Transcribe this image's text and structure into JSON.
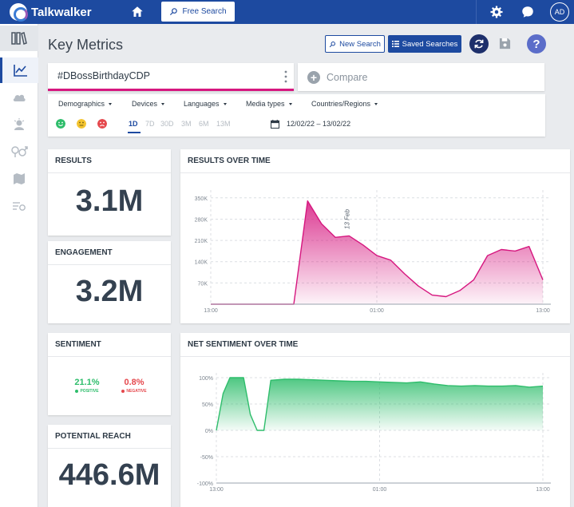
{
  "app": {
    "brand": "Talkwalker",
    "free_search_label": "Free Search",
    "avatar_initials": "AD",
    "brand_color": "#1d4aa0"
  },
  "header": {
    "title": "Key Metrics",
    "new_search_label": "New Search",
    "saved_searches_label": "Saved Searches",
    "help_label": "?"
  },
  "query": {
    "text": "#DBossBirthdayCDP",
    "compare_label": "Compare"
  },
  "filters": {
    "items": [
      "Demographics",
      "Devices",
      "Languages",
      "Media types",
      "Countries/Regions"
    ],
    "ranges": [
      "1D",
      "7D",
      "30D",
      "3M",
      "6M",
      "13M"
    ],
    "active_range": "1D",
    "date_range": "12/02/22 – 13/02/22"
  },
  "sidebar": {
    "icons": [
      "library-icon",
      "chart-line-icon",
      "cloud-icon",
      "influencer-icon",
      "gender-icon",
      "map-icon",
      "topics-icon"
    ],
    "active": "chart-line-icon"
  },
  "metrics": {
    "results_title": "RESULTS",
    "results_value": "3.1M",
    "engagement_title": "ENGAGEMENT",
    "engagement_value": "3.2M",
    "sentiment_title": "SENTIMENT",
    "positive_value": "21.1%",
    "positive_label": "POSITIVE",
    "negative_value": "0.8%",
    "negative_label": "NEGATIVE",
    "reach_title": "POTENTIAL REACH",
    "reach_value": "446.6M",
    "positive_color": "#2ebd6b",
    "negative_color": "#e5484d"
  },
  "charts": {
    "results_over_time_title": "RESULTS OVER TIME",
    "net_sentiment_title": "NET SENTIMENT OVER TIME"
  },
  "chart_data": [
    {
      "type": "area",
      "title": "RESULTS OVER TIME",
      "x_tick_labels": [
        "13:00",
        "01:00",
        "13:00"
      ],
      "y_tick_labels": [
        "350K",
        "280K",
        "210K",
        "140K",
        "70K"
      ],
      "annotation": "13 Feb",
      "ylim": [
        0,
        360000
      ],
      "color": "#d6177f",
      "grid": true,
      "x": [
        0,
        2,
        3,
        4,
        5,
        6,
        7,
        8,
        9,
        10,
        11,
        12,
        13,
        14,
        15,
        16,
        17,
        18,
        19,
        20,
        21,
        22,
        23,
        24
      ],
      "values": [
        0,
        0,
        0,
        0,
        0,
        0,
        340000,
        265000,
        220000,
        225000,
        195000,
        160000,
        145000,
        100000,
        60000,
        30000,
        25000,
        45000,
        80000,
        160000,
        180000,
        175000,
        190000,
        80000
      ]
    },
    {
      "type": "area",
      "title": "NET SENTIMENT OVER TIME",
      "x_tick_labels": [
        "13:00",
        "01:00",
        "13:00"
      ],
      "y_tick_labels": [
        "100%",
        "50%",
        "0%",
        "-50%",
        "-100%"
      ],
      "ylim": [
        -100,
        100
      ],
      "color": "#2ebd6b",
      "grid": true,
      "x": [
        0,
        0.5,
        1,
        2,
        2.5,
        3,
        3.5,
        4,
        5,
        6,
        7,
        8,
        9,
        10,
        11,
        12,
        13,
        14,
        15,
        16,
        17,
        18,
        19,
        20,
        21,
        22,
        23,
        24
      ],
      "values": [
        0,
        70,
        100,
        100,
        30,
        0,
        0,
        95,
        97,
        97,
        96,
        95,
        94,
        93,
        93,
        92,
        91,
        90,
        92,
        88,
        85,
        84,
        85,
        84,
        84,
        85,
        82,
        84
      ]
    }
  ]
}
